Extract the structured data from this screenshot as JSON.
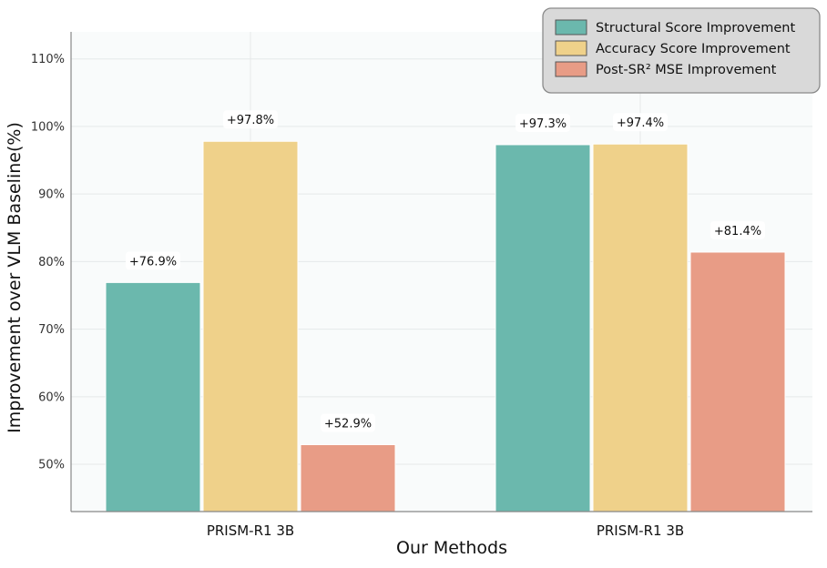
{
  "chart_data": {
    "type": "bar",
    "categories": [
      "PRISM-R1 3B",
      "PRISM-R1 3B"
    ],
    "series": [
      {
        "name": "Structural Score Improvement",
        "values": [
          76.9,
          97.3
        ],
        "labels": [
          "+76.9%",
          "+97.3%"
        ],
        "color": "#6bb8ad"
      },
      {
        "name": "Accuracy Score Improvement",
        "values": [
          97.8,
          97.4
        ],
        "labels": [
          "+97.8%",
          "+97.4%"
        ],
        "color": "#efd18a"
      },
      {
        "name": "Post-SR² MSE Improvement",
        "values": [
          52.9,
          81.4
        ],
        "labels": [
          "+52.9%",
          "+81.4%"
        ],
        "color": "#e89c86"
      }
    ],
    "xlabel": "Our Methods",
    "ylabel": "Improvement over VLM Baseline(%)",
    "ylim": [
      43,
      114
    ],
    "yticks": [
      50,
      60,
      70,
      80,
      90,
      100,
      110
    ],
    "ytick_labels": [
      "50%",
      "60%",
      "70%",
      "80%",
      "90%",
      "100%",
      "110%"
    ],
    "grid": true,
    "legend_position": "top-right"
  }
}
